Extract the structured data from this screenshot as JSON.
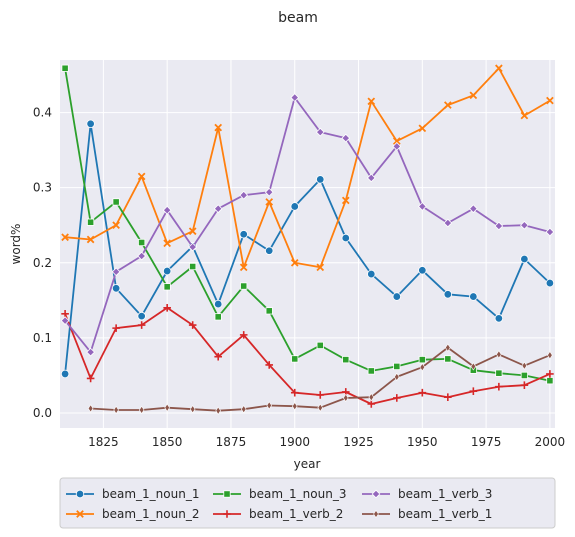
{
  "chart_data": {
    "type": "line",
    "title": "beam",
    "xlabel": "year",
    "ylabel": "word%",
    "xlim": [
      1808,
      2002
    ],
    "ylim": [
      -0.02,
      0.47
    ],
    "xticks": [
      1825,
      1850,
      1875,
      1900,
      1925,
      1950,
      1975,
      2000
    ],
    "yticks": [
      0.0,
      0.1,
      0.2,
      0.3,
      0.4
    ],
    "grid": true,
    "legend_position": "bottom",
    "series": [
      {
        "name": "beam_1_noun_1",
        "color": "#1f77b4",
        "marker": "circle",
        "x": [
          1810,
          1820,
          1830,
          1840,
          1850,
          1860,
          1870,
          1880,
          1890,
          1900,
          1910,
          1920,
          1930,
          1940,
          1950,
          1960,
          1970,
          1980,
          1990,
          2000
        ],
        "y": [
          0.052,
          0.385,
          0.166,
          0.129,
          0.189,
          0.222,
          0.145,
          0.238,
          0.216,
          0.275,
          0.311,
          0.233,
          0.185,
          0.155,
          0.19,
          0.158,
          0.155,
          0.126,
          0.205,
          0.173
        ]
      },
      {
        "name": "beam_1_noun_2",
        "color": "#ff7f0e",
        "marker": "x",
        "x": [
          1810,
          1820,
          1830,
          1840,
          1850,
          1860,
          1870,
          1880,
          1890,
          1900,
          1910,
          1920,
          1930,
          1940,
          1950,
          1960,
          1970,
          1980,
          1990,
          2000
        ],
        "y": [
          0.234,
          0.231,
          0.25,
          0.315,
          0.226,
          0.242,
          0.38,
          0.194,
          0.281,
          0.2,
          0.194,
          0.283,
          0.415,
          0.362,
          0.379,
          0.41,
          0.423,
          0.459,
          0.396,
          0.416
        ]
      },
      {
        "name": "beam_1_noun_3",
        "color": "#2ca02c",
        "marker": "square",
        "x": [
          1810,
          1820,
          1830,
          1840,
          1850,
          1860,
          1870,
          1880,
          1890,
          1900,
          1910,
          1920,
          1930,
          1940,
          1950,
          1960,
          1970,
          1980,
          1990,
          2000
        ],
        "y": [
          0.459,
          0.254,
          0.281,
          0.227,
          0.168,
          0.195,
          0.128,
          0.169,
          0.136,
          0.072,
          0.09,
          0.071,
          0.056,
          0.062,
          0.071,
          0.072,
          0.057,
          0.053,
          0.05,
          0.043
        ]
      },
      {
        "name": "beam_1_verb_2",
        "color": "#d62728",
        "marker": "plus",
        "x": [
          1810,
          1820,
          1830,
          1840,
          1850,
          1860,
          1870,
          1880,
          1890,
          1900,
          1910,
          1920,
          1930,
          1940,
          1950,
          1960,
          1970,
          1980,
          1990,
          2000
        ],
        "y": [
          0.132,
          0.046,
          0.113,
          0.117,
          0.14,
          0.117,
          0.075,
          0.104,
          0.064,
          0.027,
          0.024,
          0.028,
          0.012,
          0.02,
          0.027,
          0.021,
          0.029,
          0.035,
          0.037,
          0.052
        ]
      },
      {
        "name": "beam_1_verb_3",
        "color": "#9467bd",
        "marker": "diamond",
        "x": [
          1810,
          1820,
          1830,
          1840,
          1850,
          1860,
          1870,
          1880,
          1890,
          1900,
          1910,
          1920,
          1930,
          1940,
          1950,
          1960,
          1970,
          1980,
          1990,
          2000
        ],
        "y": [
          0.123,
          0.081,
          0.188,
          0.209,
          0.27,
          0.221,
          0.272,
          0.29,
          0.294,
          0.42,
          0.374,
          0.366,
          0.313,
          0.355,
          0.275,
          0.253,
          0.272,
          0.249,
          0.25,
          0.241
        ]
      },
      {
        "name": "beam_1_verb_1",
        "color": "#8c564b",
        "marker": "thin-diamond",
        "x": [
          1820,
          1830,
          1840,
          1850,
          1860,
          1870,
          1880,
          1890,
          1900,
          1910,
          1920,
          1930,
          1940,
          1950,
          1960,
          1970,
          1980,
          1990,
          2000
        ],
        "y": [
          0.006,
          0.004,
          0.004,
          0.007,
          0.005,
          0.003,
          0.005,
          0.01,
          0.009,
          0.007,
          0.02,
          0.021,
          0.048,
          0.061,
          0.087,
          0.062,
          0.078,
          0.063,
          0.077
        ]
      }
    ]
  }
}
